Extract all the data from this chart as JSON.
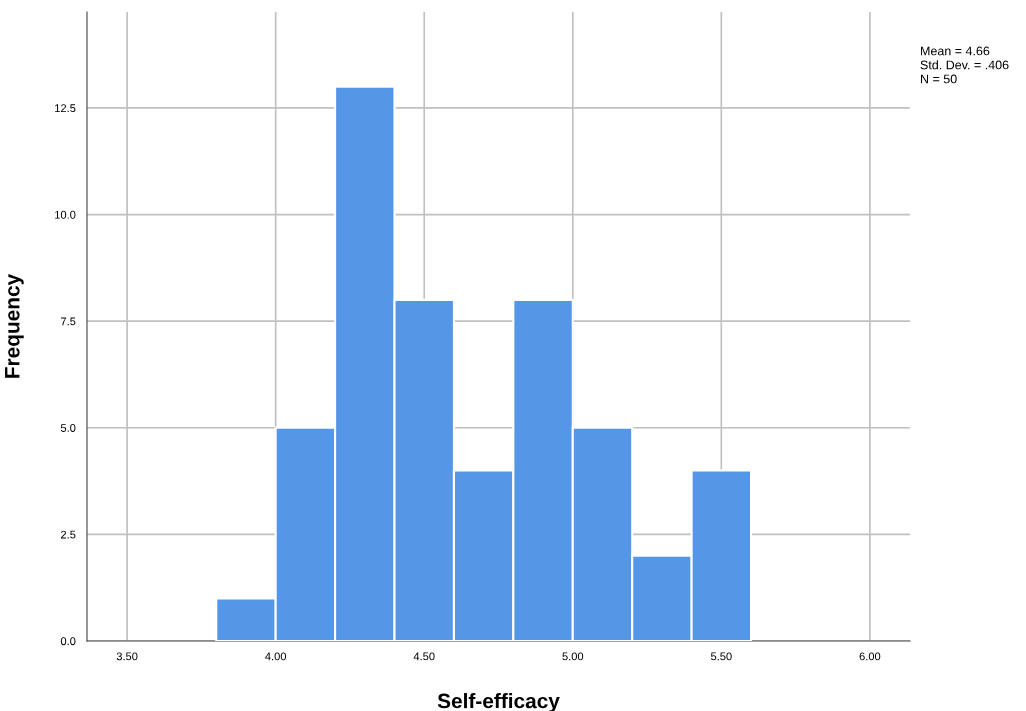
{
  "chart_data": {
    "type": "histogram",
    "xlabel": "Self-efficacy",
    "ylabel": "Frequency",
    "bins": [
      3.8,
      4.0,
      4.2,
      4.4,
      4.6,
      4.8,
      5.0,
      5.2,
      5.4,
      5.6
    ],
    "values": [
      1,
      5,
      13,
      8,
      4,
      8,
      5,
      2,
      4
    ],
    "color": "#5596e6",
    "xlim": [
      3.365,
      6.135
    ],
    "ylim": [
      0,
      14.75
    ],
    "xticks": [
      {
        "value": 3.5,
        "label": "3.50"
      },
      {
        "value": 4.0,
        "label": "4.00"
      },
      {
        "value": 4.5,
        "label": "4.50"
      },
      {
        "value": 5.0,
        "label": "5.00"
      },
      {
        "value": 5.5,
        "label": "5.50"
      },
      {
        "value": 6.0,
        "label": "6.00"
      }
    ],
    "yticks": [
      {
        "value": 0,
        "label": "0.0"
      },
      {
        "value": 2.5,
        "label": "2.5"
      },
      {
        "value": 5,
        "label": "5.0"
      },
      {
        "value": 7.5,
        "label": "7.5"
      },
      {
        "value": 10,
        "label": "10.0"
      },
      {
        "value": 12.5,
        "label": "12.5"
      }
    ],
    "grid": true,
    "annotations": [
      "Mean = 4.66",
      "Std. Dev. = .406",
      "N = 50"
    ]
  }
}
